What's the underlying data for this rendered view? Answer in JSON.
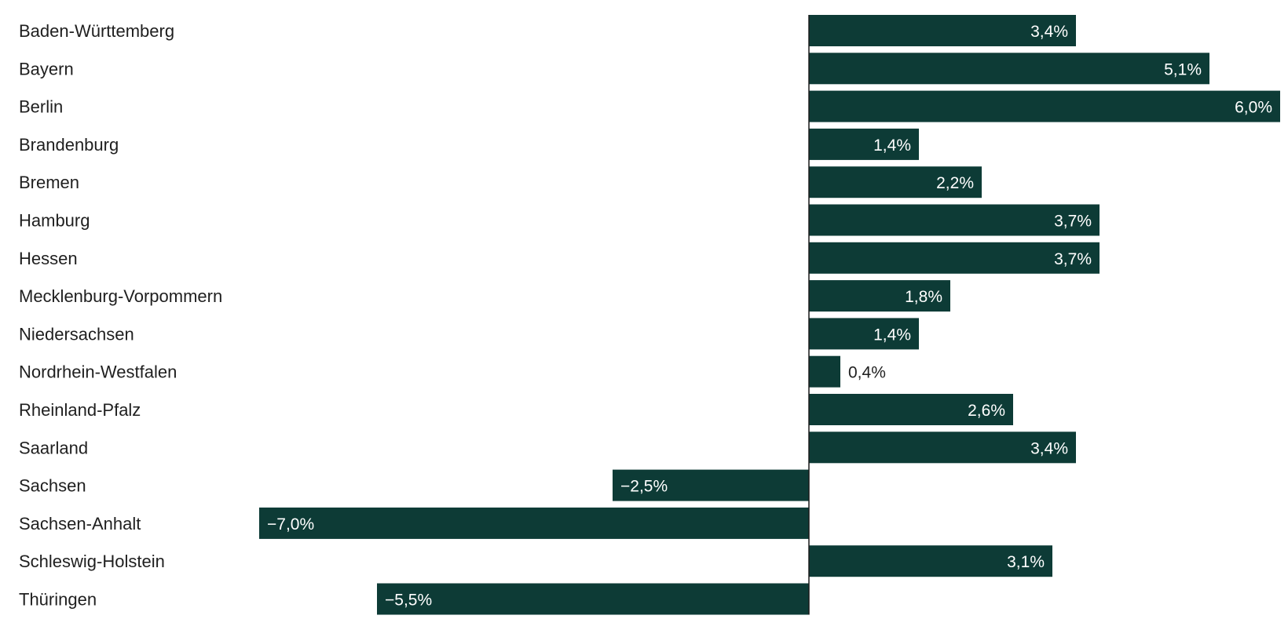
{
  "chart_data": {
    "type": "bar",
    "orientation": "horizontal",
    "categories": [
      "Baden-Württemberg",
      "Bayern",
      "Berlin",
      "Brandenburg",
      "Bremen",
      "Hamburg",
      "Hessen",
      "Mecklenburg-Vorpommern",
      "Niedersachsen",
      "Nordrhein-Westfalen",
      "Rheinland-Pfalz",
      "Saarland",
      "Sachsen",
      "Sachsen-Anhalt",
      "Schleswig-Holstein",
      "Thüringen"
    ],
    "values": [
      3.4,
      5.1,
      6.0,
      1.4,
      2.2,
      3.7,
      3.7,
      1.8,
      1.4,
      0.4,
      2.6,
      3.4,
      -2.5,
      -7.0,
      3.1,
      -5.5
    ],
    "value_labels": [
      "3,4%",
      "5,1%",
      "6,0%",
      "1,4%",
      "2,2%",
      "3,7%",
      "3,7%",
      "1,8%",
      "1,4%",
      "0,4%",
      "2,6%",
      "3,4%",
      "−2,5%",
      "−7,0%",
      "3,1%",
      "−5,5%"
    ],
    "xlim": [
      -7.0,
      6.0
    ],
    "grid": false,
    "colors": {
      "bar": "#0d3b36",
      "axis": "#1a1a1a",
      "label_inside": "#ffffff",
      "label_outside": "#1f1f1f"
    }
  }
}
